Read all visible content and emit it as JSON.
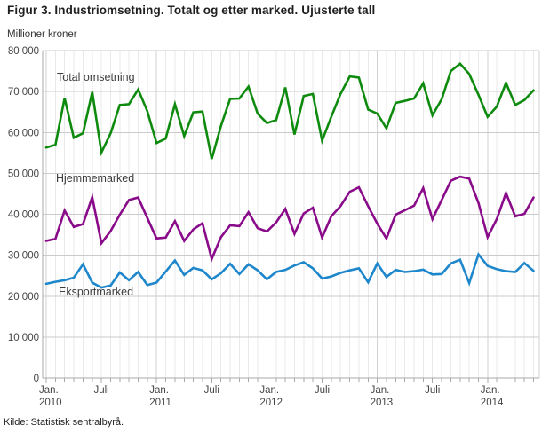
{
  "header": {
    "title": "Figur 3. Industriomsetning. Totalt og etter marked. Ujusterte tall"
  },
  "footer": {
    "source": "Kilde: Statistisk sentralbyrå."
  },
  "chart_data": {
    "type": "line",
    "title": "Figur 3. Industriomsetning. Totalt og etter marked. Ujusterte tall",
    "y_unit": "Millioner kroner",
    "ylim": [
      0,
      80000
    ],
    "grid": "on",
    "x_period": "monthly, Jan 2010 - Jun 2014",
    "y_ticks": [
      {
        "value": 80000,
        "label": "80 000"
      },
      {
        "value": 70000,
        "label": "70 000"
      },
      {
        "value": 60000,
        "label": "60 000"
      },
      {
        "value": 50000,
        "label": "50 000"
      },
      {
        "value": 40000,
        "label": "40 000"
      },
      {
        "value": 30000,
        "label": "30 000"
      },
      {
        "value": 20000,
        "label": "20 000"
      },
      {
        "value": 10000,
        "label": "10 000"
      },
      {
        "value": 0,
        "label": "0"
      }
    ],
    "x_ticks": [
      {
        "month_index": 0,
        "line1": "Jan.",
        "line2": "2010"
      },
      {
        "month_index": 6,
        "line1": "Juli",
        "line2": ""
      },
      {
        "month_index": 12,
        "line1": "Jan.",
        "line2": "2011"
      },
      {
        "month_index": 18,
        "line1": "Juli",
        "line2": ""
      },
      {
        "month_index": 24,
        "line1": "Jan.",
        "line2": "2012"
      },
      {
        "month_index": 30,
        "line1": "Juli",
        "line2": ""
      },
      {
        "month_index": 36,
        "line1": "Jan.",
        "line2": "2013"
      },
      {
        "month_index": 42,
        "line1": "Juli",
        "line2": ""
      },
      {
        "month_index": 48,
        "line1": "Jan.",
        "line2": "2014"
      }
    ],
    "series": [
      {
        "name": "Total omsetning",
        "color": "#0e8b0e",
        "values": [
          56300,
          57000,
          68400,
          58700,
          59800,
          69900,
          55100,
          59800,
          66700,
          66900,
          70500,
          65200,
          57400,
          58500,
          66900,
          59100,
          64900,
          65100,
          53500,
          61600,
          68200,
          68300,
          71200,
          64600,
          62300,
          63000,
          71000,
          59500,
          68900,
          69400,
          58000,
          63800,
          69400,
          73700,
          73400,
          65600,
          64600,
          61000,
          67200,
          67700,
          68300,
          72000,
          64200,
          68100,
          75000,
          76800,
          74300,
          69200,
          63800,
          66300,
          72100,
          66700,
          67900,
          70300
        ]
      },
      {
        "name": "Hjemmemarked",
        "color": "#8a0b8a",
        "values": [
          33500,
          34000,
          40900,
          36900,
          37600,
          44200,
          32900,
          35900,
          39900,
          43500,
          44100,
          39100,
          34100,
          34300,
          38300,
          33500,
          36300,
          37800,
          29100,
          34400,
          37300,
          37100,
          40500,
          36600,
          35800,
          38000,
          41300,
          35200,
          40200,
          41600,
          34300,
          39500,
          42000,
          45500,
          46600,
          42000,
          37700,
          34100,
          39900,
          41000,
          42100,
          46400,
          38800,
          43500,
          48200,
          49200,
          48700,
          42800,
          34400,
          38800,
          45200,
          39500,
          40100,
          44100
        ]
      },
      {
        "name": "Eksportmarked",
        "color": "#1e87cc",
        "values": [
          23000,
          23500,
          23900,
          24500,
          27800,
          23300,
          22100,
          22600,
          25800,
          23900,
          25900,
          22700,
          23300,
          26000,
          28700,
          25200,
          26900,
          26300,
          24100,
          25600,
          27900,
          25400,
          27800,
          26300,
          24100,
          25900,
          26400,
          27500,
          28300,
          26800,
          24300,
          24800,
          25700,
          26300,
          26800,
          23400,
          28000,
          24700,
          26400,
          25900,
          26100,
          26500,
          25300,
          25400,
          28000,
          28900,
          23200,
          30200,
          27400,
          26600,
          26100,
          25900,
          28100,
          26200
        ]
      }
    ]
  }
}
